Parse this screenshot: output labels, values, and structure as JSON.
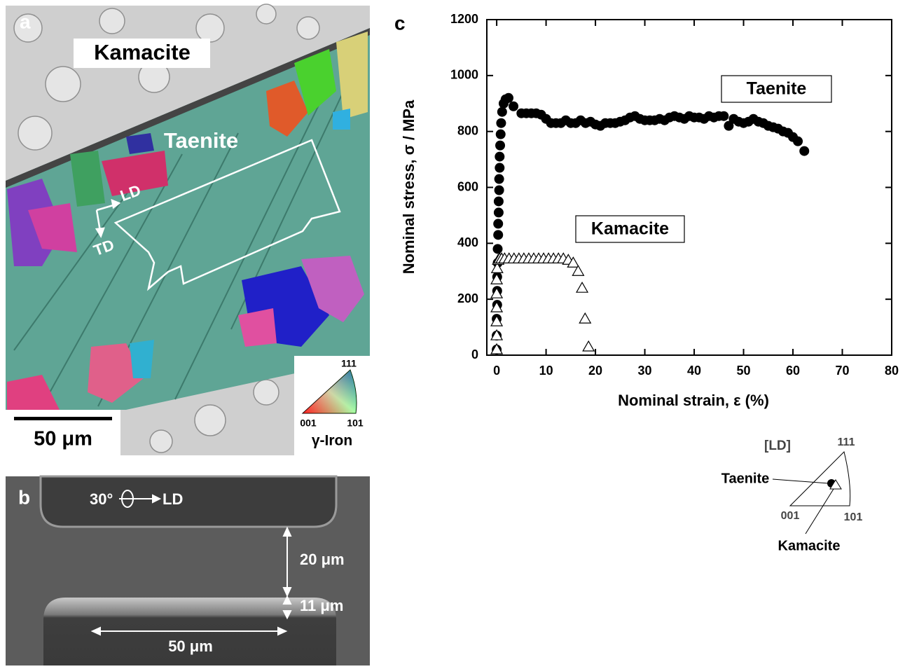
{
  "panel_a": {
    "label": "a",
    "kamacite": "Kamacite",
    "taenite": "Taenite",
    "ld": "LD",
    "td": "TD",
    "scale": "50 μm",
    "ipf_111": "111",
    "ipf_001": "001",
    "ipf_101": "101",
    "ipf_phase": "γ-Iron"
  },
  "panel_b": {
    "label": "b",
    "angle": "30°",
    "ld": "LD",
    "width": "20 μm",
    "depth": "11 μm",
    "length": "50 μm"
  },
  "chart_data": {
    "type": "scatter",
    "panel_label": "c",
    "x_label": "Nominal strain, ε (%)",
    "y_label": "Nominal stress, σ / MPa",
    "xlim": [
      -2,
      80
    ],
    "ylim": [
      0,
      1200
    ],
    "xticks": [
      0,
      10,
      20,
      30,
      40,
      50,
      60,
      70,
      80
    ],
    "yticks": [
      0,
      200,
      400,
      600,
      800,
      1000,
      1200
    ],
    "series": [
      {
        "name": "Taenite",
        "color": "#000000",
        "marker": "circle",
        "x": [
          0,
          0,
          0,
          0.1,
          0.1,
          0.1,
          0.2,
          0.2,
          0.3,
          0.3,
          0.4,
          0.4,
          0.5,
          0.5,
          0.6,
          0.6,
          0.7,
          0.8,
          0.9,
          1.1,
          1.4,
          1.8,
          2.4,
          3.4,
          5,
          6,
          7,
          8,
          9,
          10,
          11,
          12,
          13,
          14,
          15,
          16,
          17,
          18,
          19,
          20,
          21,
          22,
          23,
          24,
          25,
          26,
          27,
          28,
          29,
          30,
          31,
          32,
          33,
          34,
          35,
          36,
          37,
          38,
          39,
          40,
          41,
          42,
          43,
          44,
          45,
          46,
          47,
          48,
          49,
          50,
          51,
          52,
          53,
          54,
          55,
          56,
          57,
          58,
          59,
          60,
          61,
          62.3
        ],
        "values": [
          20,
          70,
          130,
          180,
          230,
          280,
          330,
          380,
          430,
          470,
          510,
          550,
          590,
          630,
          670,
          710,
          750,
          790,
          830,
          870,
          900,
          915,
          920,
          890,
          865,
          865,
          865,
          865,
          860,
          845,
          830,
          830,
          830,
          840,
          830,
          830,
          840,
          830,
          835,
          825,
          820,
          830,
          830,
          830,
          835,
          840,
          850,
          855,
          845,
          840,
          840,
          840,
          845,
          840,
          850,
          855,
          850,
          845,
          855,
          850,
          850,
          845,
          855,
          850,
          855,
          855,
          820,
          845,
          835,
          830,
          835,
          845,
          835,
          830,
          820,
          815,
          810,
          800,
          795,
          780,
          765,
          730
        ]
      },
      {
        "name": "Kamacite",
        "color": "#000000",
        "marker": "triangle",
        "x": [
          0,
          0,
          0,
          0,
          0,
          0,
          0.1,
          0.3,
          0.6,
          1,
          1.6,
          2.5,
          3.5,
          4.5,
          5.5,
          6.5,
          7.5,
          8.5,
          9.5,
          10.5,
          11.5,
          12.5,
          13.5,
          14.5,
          15.5,
          16.5,
          17.3,
          17.9,
          18.6
        ],
        "values": [
          20,
          70,
          120,
          170,
          220,
          270,
          310,
          340,
          345,
          345,
          345,
          345,
          345,
          345,
          345,
          345,
          345,
          345,
          345,
          345,
          345,
          345,
          345,
          340,
          330,
          300,
          240,
          130,
          30
        ]
      }
    ]
  },
  "inset": {
    "direction": "[LD]",
    "v111": "111",
    "v001": "001",
    "v101": "101",
    "taenite": "Taenite",
    "kamacite": "Kamacite"
  }
}
